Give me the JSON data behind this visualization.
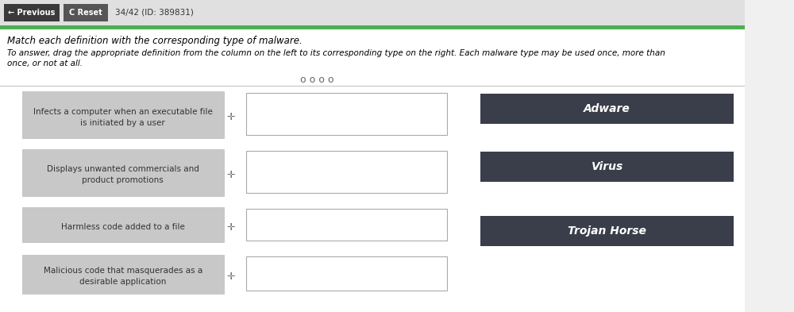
{
  "bg_color": "#f0f0f0",
  "header_bg": "#ffffff",
  "green_bar_color": "#4caf50",
  "top_bar_bg": "#d0d0d0",
  "button_dark_bg": "#3a3a3a",
  "button_text_color": "#ffffff",
  "prev_button_text": "← Previous",
  "reset_button_text": "C Reset",
  "counter_text": "34/42 (ID: 389831)",
  "title_text": "Match each definition with the corresponding type of malware.",
  "instruction_text": "To answer, drag the appropriate definition from the column on the left to its corresponding type on the right. Each malware type may be used once, more than",
  "instruction_text2": "once, or not at all.",
  "dots": "o o o o",
  "left_boxes": [
    "Infects a computer when an executable file\nis initiated by a user",
    "Displays unwanted commercials and\nproduct promotions",
    "Harmless code added to a file",
    "Malicious code that masquerades as a\ndesirable application"
  ],
  "right_labels": [
    "Adware",
    "Virus",
    "Trojan Horse"
  ],
  "left_box_bg": "#c8c8c8",
  "drop_box_bg": "#ffffff",
  "drop_box_border": "#aaaaaa",
  "right_box_bg": "#3a3d4a",
  "right_box_text": "#ffffff",
  "main_bg": "#ffffff",
  "separator_color": "#cccccc"
}
